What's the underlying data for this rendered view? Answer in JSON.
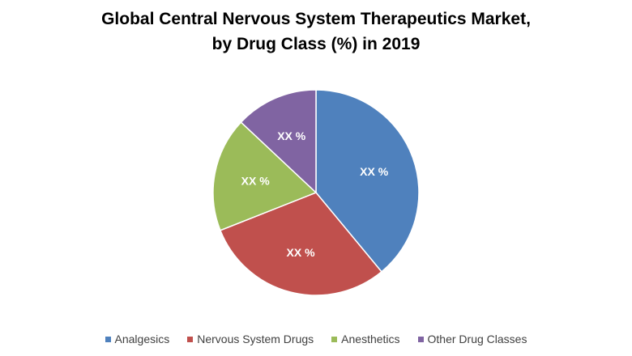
{
  "chart_data": {
    "type": "pie",
    "title_line1": "Global Central Nervous System Therapeutics Market,",
    "title_line2": "by Drug Class (%) in 2019",
    "categories": [
      "Analgesics",
      "Nervous System Drugs",
      "Anesthetics",
      "Other Drug Classes"
    ],
    "values": [
      39,
      30,
      18,
      13
    ],
    "labels": [
      "XX %",
      "XX %",
      "XX %",
      "XX %"
    ],
    "colors": [
      "#4F81BD",
      "#C0504D",
      "#9BBB59",
      "#8064A2"
    ],
    "legend_position": "bottom"
  }
}
